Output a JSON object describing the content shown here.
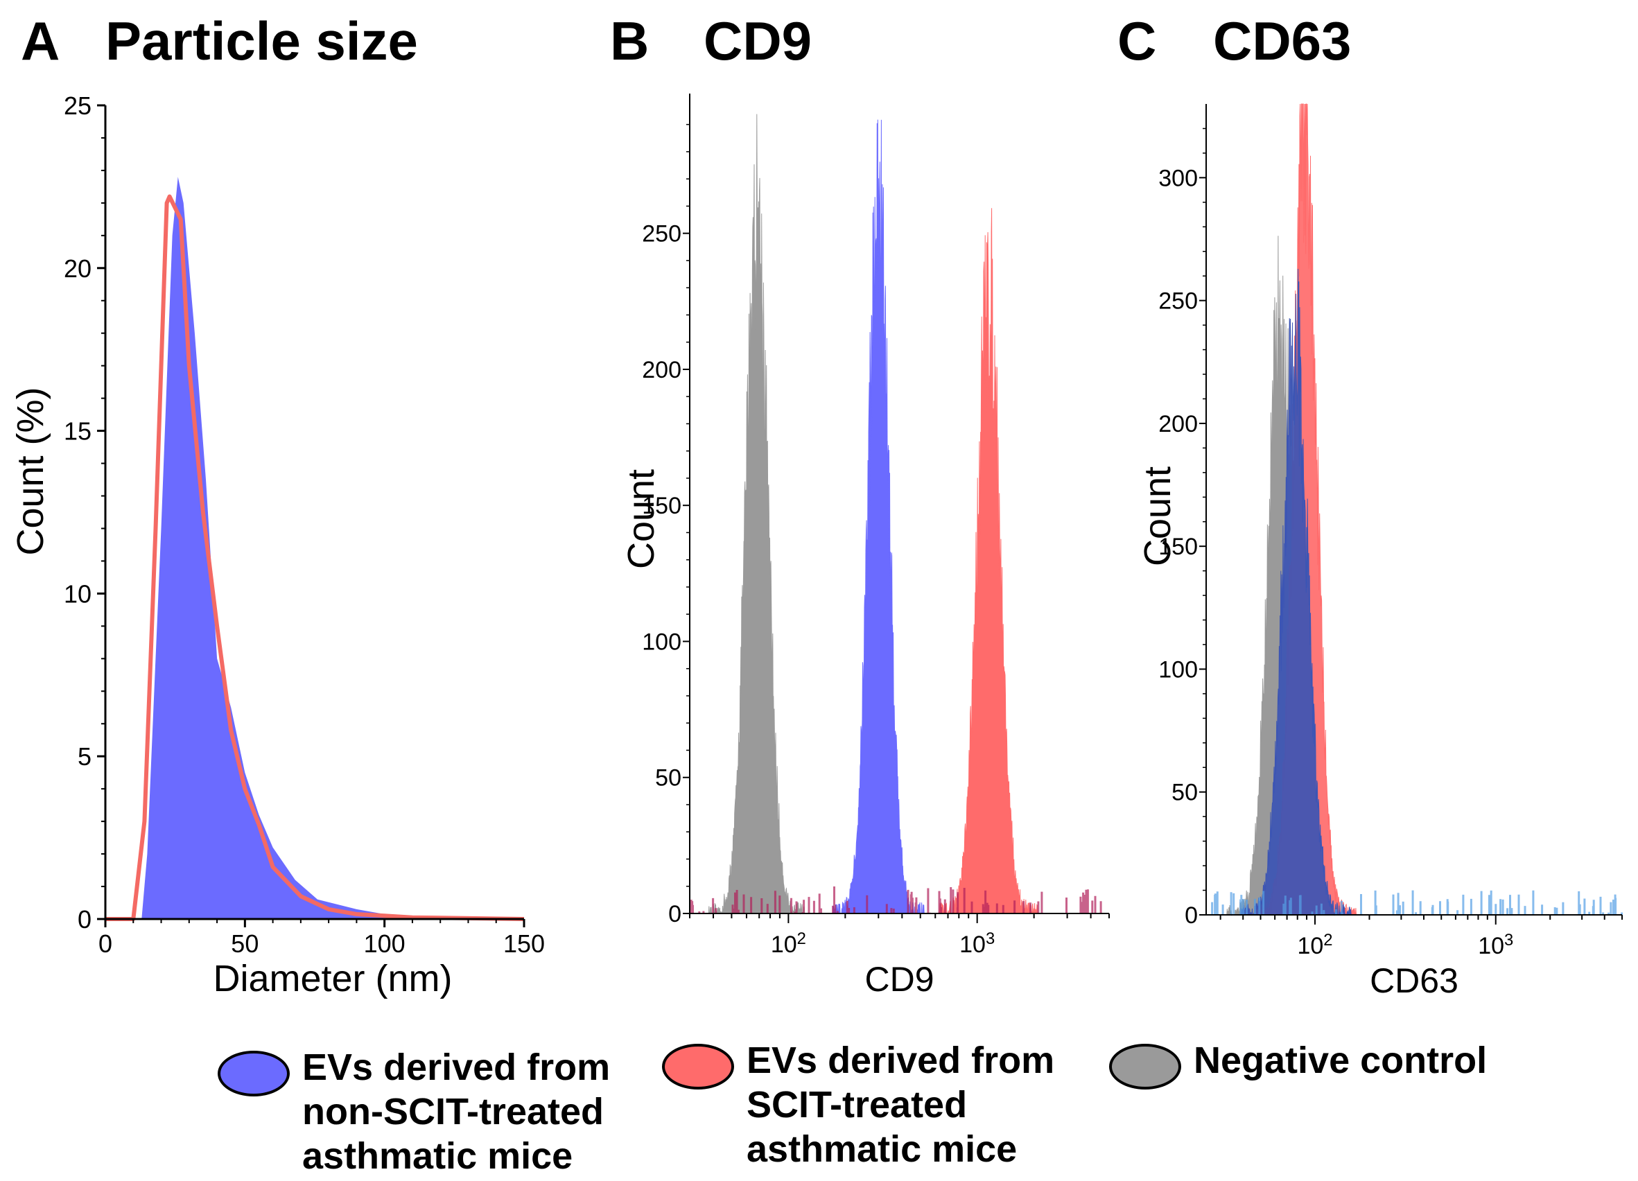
{
  "colors": {
    "blue": "#6b6bff",
    "blue_dark": "#3b3bff",
    "red": "#ff6b6b",
    "red_line": "#f46a64",
    "gray": "#9a9a9a",
    "navy": "#3c55b4",
    "lightblue": "#55a0e6",
    "dark_red": "#b0205a"
  },
  "chart_data": [
    {
      "panel": "A",
      "title": "Particle size",
      "type": "area",
      "xlabel": "Diameter (nm)",
      "ylabel": "Count (%)",
      "xlim": [
        0,
        150
      ],
      "ylim": [
        0,
        25
      ],
      "xticks": [
        "0",
        "50",
        "100",
        "150"
      ],
      "yticks": [
        "0",
        "5",
        "10",
        "15",
        "20",
        "25"
      ],
      "series": [
        {
          "name": "EVs derived from non-SCIT-treated asthmatic mice",
          "style": "filled",
          "color": "blue",
          "x": [
            0,
            13,
            15,
            20,
            24,
            26,
            28,
            32,
            36,
            40,
            45,
            50,
            55,
            60,
            68,
            76,
            90,
            100,
            110,
            125,
            150
          ],
          "y": [
            0,
            0,
            2.0,
            12.0,
            21.0,
            22.8,
            22.0,
            18.0,
            13.5,
            8.0,
            6.5,
            4.5,
            3.2,
            2.2,
            1.2,
            0.6,
            0.3,
            0.15,
            0.1,
            0.05,
            0
          ]
        },
        {
          "name": "EVs derived from SCIT-treated asthmatic mice",
          "style": "line",
          "color": "red_line",
          "x": [
            0,
            10,
            14,
            18,
            22,
            23,
            27,
            30,
            35,
            40,
            45,
            50,
            55,
            60,
            70,
            80,
            90,
            100,
            110,
            150
          ],
          "y": [
            0,
            0,
            3.0,
            12.0,
            22.0,
            22.2,
            21.5,
            17.0,
            12.5,
            9.0,
            5.8,
            4.0,
            2.9,
            1.6,
            0.7,
            0.3,
            0.15,
            0.1,
            0.05,
            0
          ]
        }
      ]
    },
    {
      "panel": "B",
      "title": "CD9",
      "type": "area",
      "xlabel": "CD9",
      "ylabel": "Count",
      "x_scale": "log",
      "xlim": [
        30,
        5000
      ],
      "ylim": [
        0,
        295
      ],
      "xticks": [
        "10²",
        "10³"
      ],
      "yticks": [
        "0",
        "50",
        "100",
        "150",
        "200",
        "250"
      ],
      "series": [
        {
          "name": "Negative control",
          "color": "gray",
          "center": 68,
          "sd_log10": 0.058,
          "peak": 265
        },
        {
          "name": "EVs derived from non-SCIT-treated asthmatic mice",
          "color": "blue",
          "center": 300,
          "sd_log10": 0.055,
          "peak": 272
        },
        {
          "name": "EVs derived from SCIT-treated asthmatic mice",
          "color": "red",
          "center": 1150,
          "sd_log10": 0.06,
          "peak": 238
        }
      ]
    },
    {
      "panel": "C",
      "title": "CD63",
      "type": "area",
      "xlabel": "CD63",
      "ylabel": "Count",
      "x_scale": "log",
      "xlim": [
        25,
        5000
      ],
      "ylim": [
        0,
        330
      ],
      "xticks": [
        "10²",
        "10³"
      ],
      "yticks": [
        "0",
        "50",
        "100",
        "150",
        "200",
        "250",
        "300"
      ],
      "series": [
        {
          "name": "Negative control",
          "color": "gray",
          "center": 65,
          "sd_log10": 0.07,
          "peak": 260
        },
        {
          "name": "EVs derived from SCIT-treated asthmatic mice",
          "color": "red",
          "center": 88,
          "sd_log10": 0.065,
          "peak": 325
        },
        {
          "name": "EVs derived from non-SCIT-treated asthmatic mice",
          "color": "navy",
          "center": 78,
          "sd_log10": 0.07,
          "peak": 240
        }
      ]
    }
  ],
  "legend": [
    {
      "label_lines": [
        "EVs derived from",
        "non-SCIT-treated",
        "asthmatic mice"
      ],
      "color": "blue"
    },
    {
      "label_lines": [
        "EVs derived from",
        "SCIT-treated",
        "asthmatic mice"
      ],
      "color": "red"
    },
    {
      "label_lines": [
        "Negative control"
      ],
      "color": "gray"
    }
  ]
}
